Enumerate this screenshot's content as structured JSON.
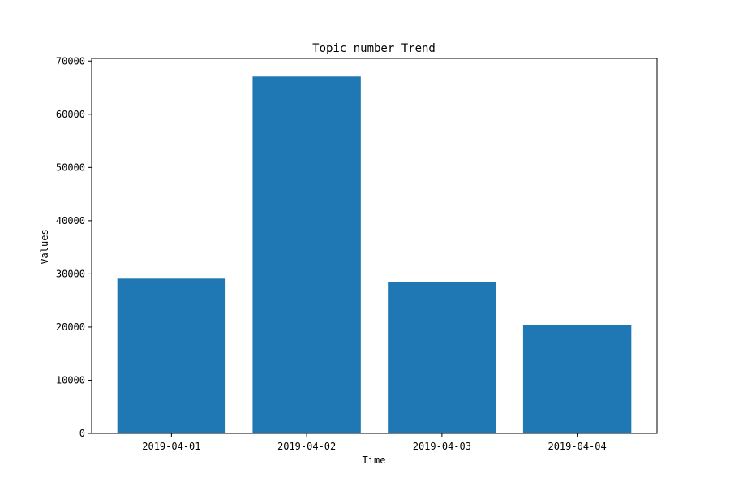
{
  "chart_data": {
    "type": "bar",
    "title": "Topic number Trend",
    "xlabel": "Time",
    "ylabel": "Values",
    "categories": [
      "2019-04-01",
      "2019-04-02",
      "2019-04-03",
      "2019-04-04"
    ],
    "values": [
      29100,
      67100,
      28400,
      20300
    ],
    "ylim": [
      0,
      70500
    ],
    "yticks": [
      0,
      10000,
      20000,
      30000,
      40000,
      50000,
      60000,
      70000
    ],
    "ytick_labels": [
      "0",
      "10000",
      "20000",
      "30000",
      "40000",
      "50000",
      "60000",
      "70000"
    ],
    "bar_color": "#1f77b4",
    "grid": false,
    "legend": "none"
  }
}
